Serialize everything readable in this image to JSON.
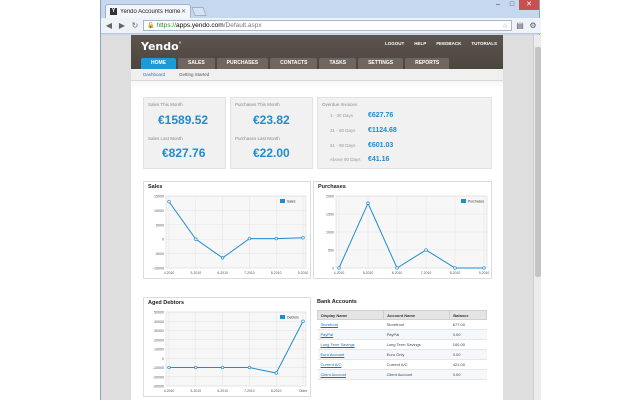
{
  "browser": {
    "tab_title": "Yendo Accounts Home",
    "tab_favicon": "Y",
    "url_https": "https://",
    "url_domain": "apps.yendo.com",
    "url_path": "/Default.aspx"
  },
  "header": {
    "logo": "Yendo",
    "logo_mark": "°",
    "top_links": [
      "LOGOUT",
      "HELP",
      "FEEDBACK",
      "TUTORIALS"
    ],
    "nav_tabs": [
      "HOME",
      "SALES",
      "PURCHASES",
      "CONTACTS",
      "TASKS",
      "SETTINGS",
      "REPORTS"
    ],
    "active_tab": "HOME",
    "sub_nav": [
      "Dashboard",
      "Getting Started"
    ]
  },
  "summary": {
    "sales_this_month_label": "Sales This Month",
    "sales_this_month": "€1589.52",
    "sales_last_month_label": "Sales Last Month",
    "sales_last_month": "€827.76",
    "purchases_this_month_label": "Purchases This Month",
    "purchases_this_month": "€23.82",
    "purchases_last_month_label": "Purchases Last Month",
    "purchases_last_month": "€22.00",
    "overdue_label": "Overdue Invoices",
    "overdue": [
      {
        "range": "1 - 30 Days",
        "amount": "€627.76"
      },
      {
        "range": "31 - 60 Days",
        "amount": "€1124.68"
      },
      {
        "range": "61 - 90 Days",
        "amount": "€601.03"
      },
      {
        "range": "Above 90 Days",
        "amount": "€41.16"
      }
    ]
  },
  "chart_data": [
    {
      "type": "line",
      "title": "Sales",
      "categories": [
        "4-2010",
        "5-2010",
        "6-2010",
        "7-2010",
        "8-2010",
        "9-2010"
      ],
      "series": [
        {
          "name": "Sales",
          "values": [
            13000,
            0,
            -6500,
            200,
            200,
            500
          ]
        }
      ],
      "yticks": [
        15000,
        10000,
        5000,
        0,
        -5000,
        -10000
      ],
      "ylim": [
        -10000,
        15000
      ],
      "legend": "top-right",
      "color": "#1e8ccf"
    },
    {
      "type": "line",
      "title": "Purchases",
      "categories": [
        "4-2010",
        "5-2010",
        "6-2010",
        "7-2010",
        "8-2010",
        "9-2010"
      ],
      "series": [
        {
          "name": "Purchases",
          "values": [
            0,
            1800,
            0,
            500,
            0,
            0
          ]
        }
      ],
      "yticks": [
        2000,
        1500,
        1000,
        500,
        0
      ],
      "ylim": [
        0,
        2000
      ],
      "legend": "top-right",
      "color": "#1e8ccf"
    },
    {
      "type": "line",
      "title": "Aged Debtors",
      "categories": [
        "4-2010",
        "5-2010",
        "6-2010",
        "7-2010",
        "8-2010",
        "Older"
      ],
      "series": [
        {
          "name": "Debtors",
          "values": [
            -10000,
            -10000,
            -10000,
            -10000,
            -16000,
            40000
          ]
        }
      ],
      "yticks": [
        50000,
        40000,
        30000,
        20000,
        10000,
        0,
        -10000,
        -20000,
        -30000
      ],
      "ylim": [
        -30000,
        50000
      ],
      "legend": "top-right",
      "color": "#1e8ccf"
    }
  ],
  "bank": {
    "title": "Bank Accounts",
    "columns": [
      "Display Name",
      "Account Name",
      "Balance"
    ],
    "rows": [
      {
        "display": "Storefront",
        "account": "Storefront",
        "balance": "677.00"
      },
      {
        "display": "PayPal",
        "account": "PayPal",
        "balance": "0.00"
      },
      {
        "display": "Long Term Savings",
        "account": "Long Term Savings",
        "balance": "100.00"
      },
      {
        "display": "Euro Account",
        "account": "Euro Only",
        "balance": "0.00"
      },
      {
        "display": "Current A/C",
        "account": "Current A/C",
        "balance": "421.00"
      },
      {
        "display": "Client Account",
        "account": "Client Account",
        "balance": "0.00"
      }
    ]
  }
}
